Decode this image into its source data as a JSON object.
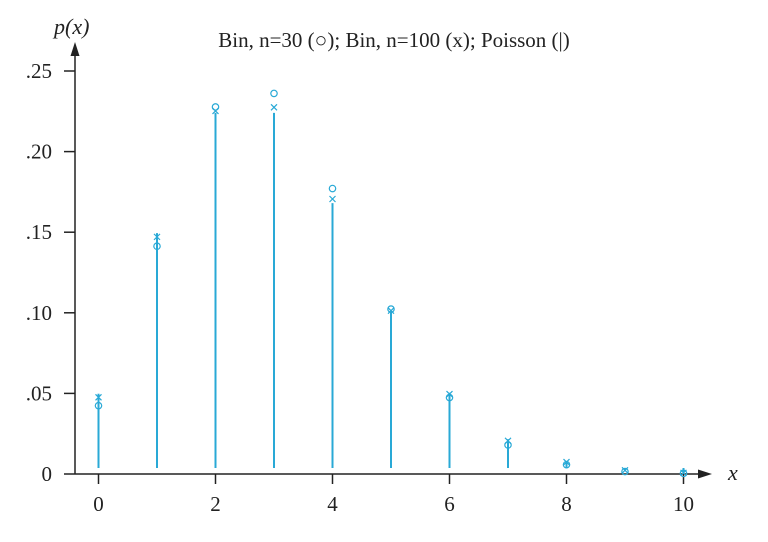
{
  "chart_data": {
    "type": "scatter",
    "title": "Bin, n=30 (○); Bin, n=100 (x); Poisson (|)",
    "ylabel": "p(x)",
    "xlabel": "x",
    "xlim": [
      -0.4,
      10.5
    ],
    "ylim": [
      0,
      0.25
    ],
    "x_ticks": [
      "0",
      "2",
      "4",
      "6",
      "8",
      "10"
    ],
    "y_ticks": [
      "0",
      ".05",
      ".10",
      ".15",
      ".20",
      ".25"
    ],
    "x": [
      0,
      1,
      2,
      3,
      4,
      5,
      6,
      7,
      8,
      9,
      10
    ],
    "series": [
      {
        "name": "Poisson",
        "marker": "|",
        "values": [
          0.0498,
          0.1494,
          0.224,
          0.224,
          0.168,
          0.1008,
          0.0504,
          0.0216,
          0.0081,
          0.0027,
          0.0008
        ]
      },
      {
        "name": "Bin, n=30",
        "marker": "o",
        "values": [
          0.0424,
          0.1413,
          0.2277,
          0.2361,
          0.1771,
          0.1023,
          0.0474,
          0.018,
          0.0058,
          0.0015,
          0.0004
        ]
      },
      {
        "name": "Bin, n=100",
        "marker": "x",
        "values": [
          0.0476,
          0.1471,
          0.2252,
          0.2275,
          0.1706,
          0.1013,
          0.0496,
          0.0206,
          0.0074,
          0.0023,
          0.0007
        ]
      }
    ],
    "colors": {
      "axis": "#222222",
      "series": "#29a9d6"
    }
  }
}
